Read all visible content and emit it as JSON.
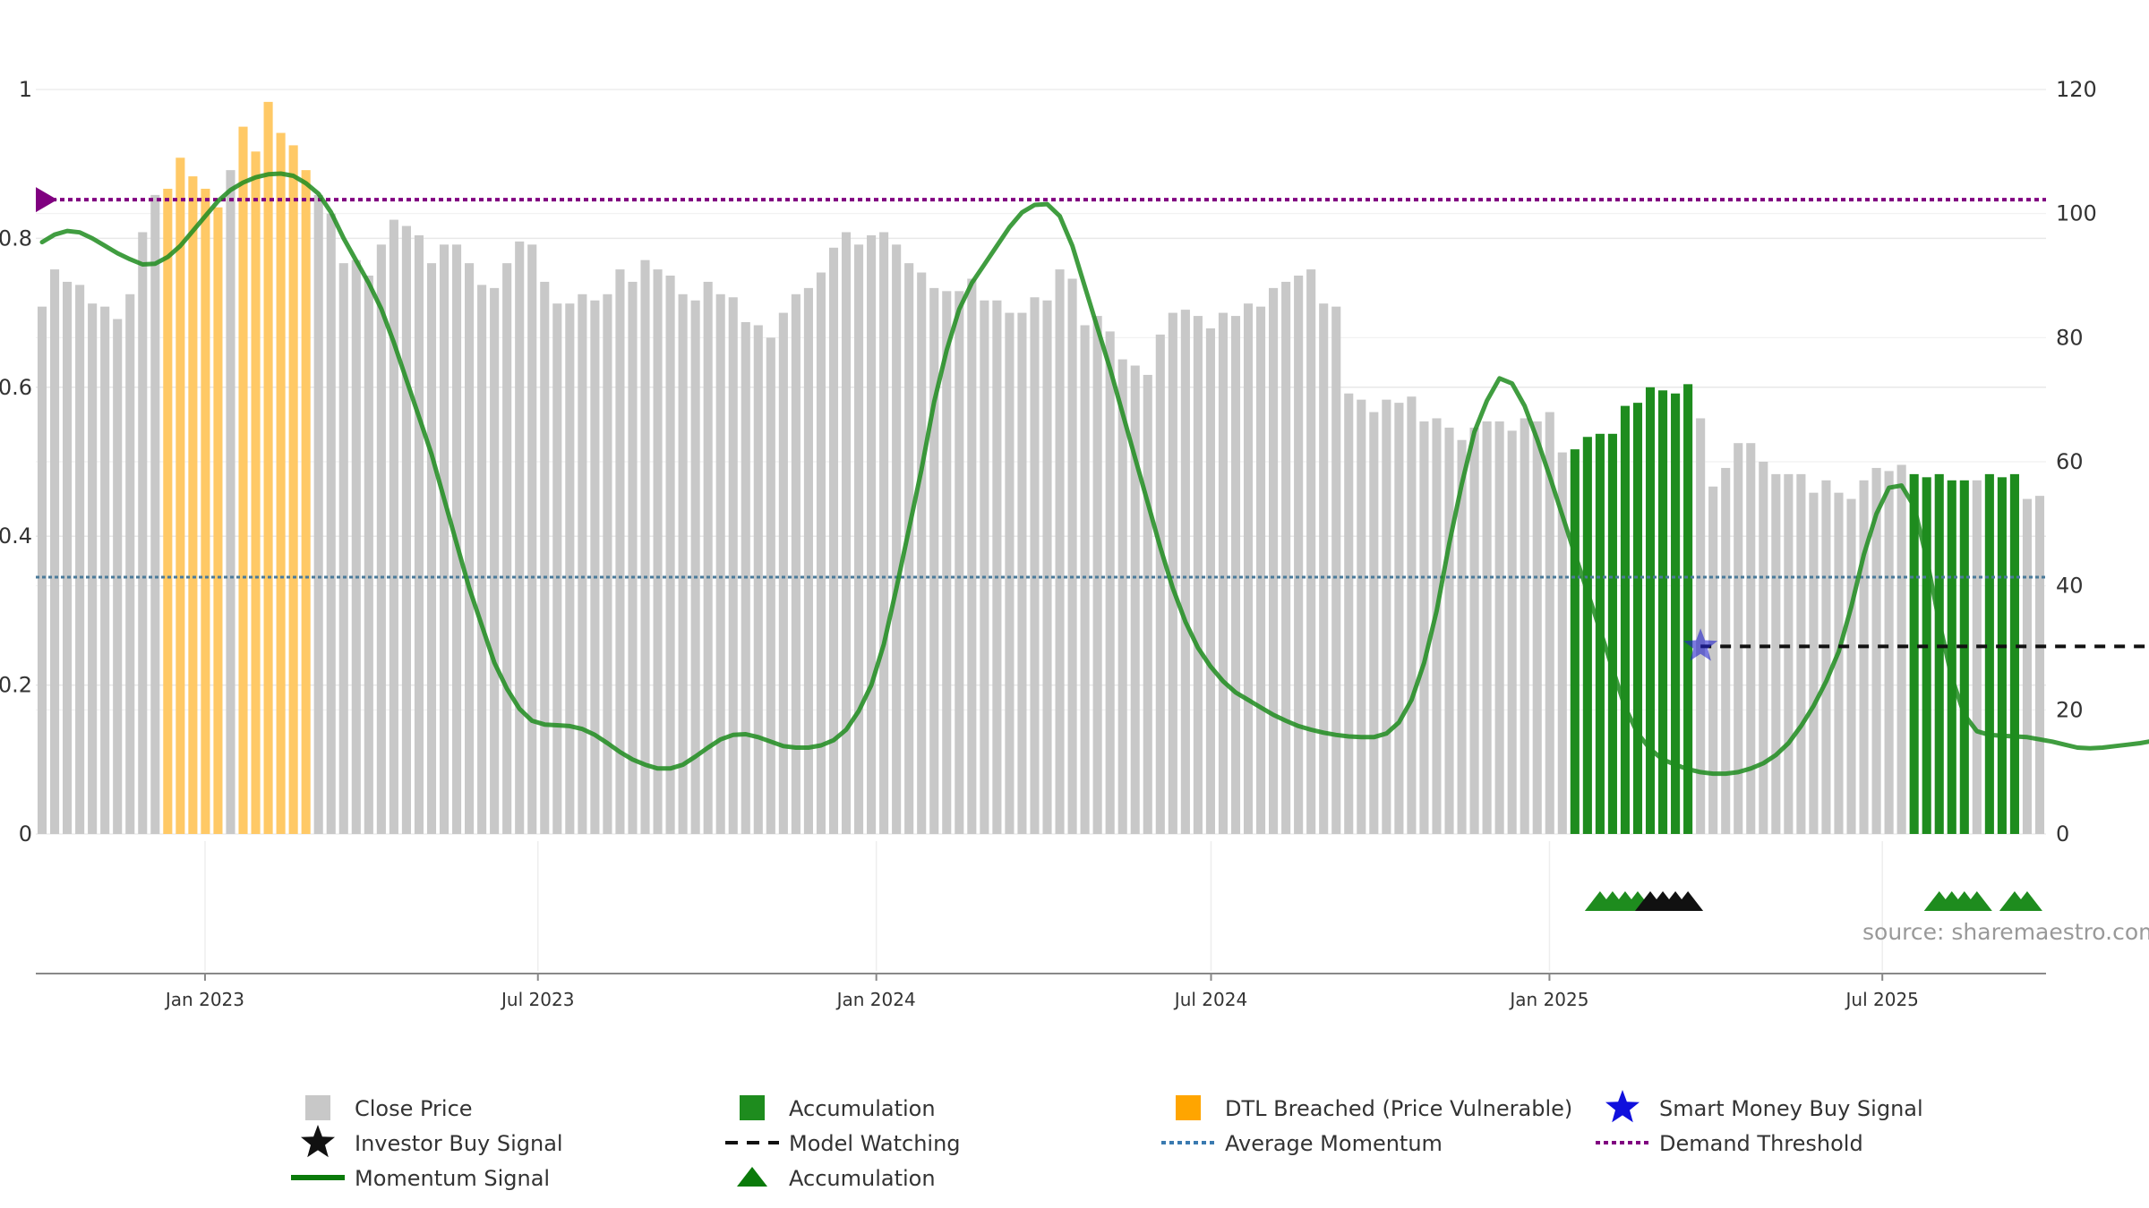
{
  "source": "source: sharemaestro.com",
  "colors": {
    "price": "#c8c8c8",
    "accumulation": "#1e8c1e",
    "dtl": "#ffc966",
    "momentum": "#1e8c1e",
    "demand": "#800080",
    "avg": "#4a7a9a",
    "smart": "#2222cc",
    "investor": "#111111",
    "grid": "#e8e8e8"
  },
  "chart_data": {
    "type": "bar",
    "x_axis": {
      "start": "2022-10-01",
      "end": "2025-09-28",
      "ticks": [
        {
          "date": "2023-01-01",
          "label": "Jan 2023"
        },
        {
          "date": "2023-07-01",
          "label": "Jul 2023"
        },
        {
          "date": "2024-01-01",
          "label": "Jan 2024"
        },
        {
          "date": "2024-07-01",
          "label": "Jul 2024"
        },
        {
          "date": "2025-01-01",
          "label": "Jan 2025"
        },
        {
          "date": "2025-07-01",
          "label": "Jul 2025"
        }
      ]
    },
    "y_left": {
      "range": [
        0,
        1
      ],
      "ticks": [
        {
          "v": 0,
          "label": "0"
        },
        {
          "v": 0.2,
          "label": "0.2"
        },
        {
          "v": 0.4,
          "label": "0.4"
        },
        {
          "v": 0.6,
          "label": "0.6"
        },
        {
          "v": 0.8,
          "label": "0.8"
        },
        {
          "v": 1,
          "label": "1"
        }
      ]
    },
    "y_right": {
      "range": [
        0,
        120
      ],
      "ticks": [
        {
          "v": 0,
          "label": "0"
        },
        {
          "v": 20,
          "label": "20"
        },
        {
          "v": 40,
          "label": "40"
        },
        {
          "v": 60,
          "label": "60"
        },
        {
          "v": 80,
          "label": "80"
        },
        {
          "v": 100,
          "label": "100"
        },
        {
          "v": 120,
          "label": "120"
        }
      ]
    },
    "close_price": [
      85,
      91,
      89,
      88.5,
      85.5,
      85,
      83,
      87,
      97,
      103,
      104,
      109,
      106,
      104,
      101,
      107,
      114,
      110,
      118,
      113,
      111,
      107,
      103,
      100,
      92,
      92.5,
      90,
      95,
      99,
      98,
      96.5,
      92,
      95,
      95,
      92,
      88.5,
      88,
      92,
      95.5,
      95,
      89,
      85.5,
      85.5,
      87,
      86,
      87,
      91,
      89,
      92.5,
      91,
      90,
      87,
      86,
      89,
      87,
      86.5,
      82.5,
      82,
      80,
      84,
      87,
      88,
      90.5,
      94.5,
      97,
      95,
      96.5,
      97,
      95,
      92,
      90.5,
      88,
      87.5,
      87.5,
      89.5,
      86,
      86,
      84,
      84,
      86.5,
      86,
      91,
      89.5,
      82,
      83.5,
      81,
      76.5,
      75.5,
      74,
      80.5,
      84,
      84.5,
      83.5,
      81.5,
      84,
      83.5,
      85.5,
      85,
      88,
      89,
      90,
      91,
      85.5,
      85,
      71,
      70,
      68,
      70,
      69.5,
      70.5,
      66.5,
      67,
      65.5,
      63.5,
      65.5,
      66.5,
      66.5,
      65,
      67,
      66.5,
      68,
      61.5,
      62,
      64,
      64.5,
      64.5,
      69,
      69.5,
      72,
      71.5,
      71,
      72.5,
      67,
      56,
      59,
      63,
      63,
      60,
      58,
      58,
      58,
      55,
      57,
      55,
      54,
      57,
      59,
      58.5,
      59.5,
      58,
      57.5,
      58,
      57,
      57,
      57,
      58,
      57.5,
      58,
      54,
      54.5
    ],
    "dtl_breached_bars": [
      10,
      11,
      12,
      13,
      14,
      16,
      17,
      18,
      19,
      20,
      21
    ],
    "accumulation_bars": [
      122,
      123,
      124,
      125,
      126,
      127,
      128,
      129,
      130,
      131,
      149,
      150,
      151,
      152,
      153,
      155,
      156,
      157
    ],
    "momentum_signal": [
      [
        0,
        0.795
      ],
      [
        1,
        0.805
      ],
      [
        2,
        0.81
      ],
      [
        3,
        0.808
      ],
      [
        4,
        0.8
      ],
      [
        5,
        0.79
      ],
      [
        6,
        0.78
      ],
      [
        7,
        0.772
      ],
      [
        8,
        0.765
      ],
      [
        9,
        0.766
      ],
      [
        10,
        0.775
      ],
      [
        11,
        0.79
      ],
      [
        12,
        0.81
      ],
      [
        13,
        0.83
      ],
      [
        14,
        0.85
      ],
      [
        15,
        0.865
      ],
      [
        16,
        0.875
      ],
      [
        17,
        0.882
      ],
      [
        18,
        0.886
      ],
      [
        19,
        0.887
      ],
      [
        20,
        0.884
      ],
      [
        21,
        0.874
      ],
      [
        22,
        0.86
      ],
      [
        23,
        0.835
      ],
      [
        24,
        0.8
      ],
      [
        25,
        0.77
      ],
      [
        26,
        0.74
      ],
      [
        27,
        0.705
      ],
      [
        28,
        0.66
      ],
      [
        29,
        0.61
      ],
      [
        30,
        0.56
      ],
      [
        31,
        0.51
      ],
      [
        32,
        0.45
      ],
      [
        33,
        0.39
      ],
      [
        34,
        0.33
      ],
      [
        35,
        0.28
      ],
      [
        36,
        0.23
      ],
      [
        37,
        0.195
      ],
      [
        38,
        0.168
      ],
      [
        39,
        0.152
      ],
      [
        40,
        0.147
      ],
      [
        41,
        0.146
      ],
      [
        42,
        0.145
      ],
      [
        43,
        0.141
      ],
      [
        44,
        0.133
      ],
      [
        45,
        0.122
      ],
      [
        46,
        0.11
      ],
      [
        47,
        0.1
      ],
      [
        48,
        0.093
      ],
      [
        49,
        0.088
      ],
      [
        50,
        0.088
      ],
      [
        51,
        0.093
      ],
      [
        52,
        0.104
      ],
      [
        53,
        0.116
      ],
      [
        54,
        0.127
      ],
      [
        55,
        0.133
      ],
      [
        56,
        0.134
      ],
      [
        57,
        0.13
      ],
      [
        58,
        0.124
      ],
      [
        59,
        0.118
      ],
      [
        60,
        0.116
      ],
      [
        61,
        0.116
      ],
      [
        62,
        0.119
      ],
      [
        63,
        0.126
      ],
      [
        64,
        0.14
      ],
      [
        65,
        0.165
      ],
      [
        66,
        0.2
      ],
      [
        67,
        0.255
      ],
      [
        68,
        0.33
      ],
      [
        69,
        0.41
      ],
      [
        70,
        0.49
      ],
      [
        71,
        0.58
      ],
      [
        72,
        0.65
      ],
      [
        73,
        0.705
      ],
      [
        74,
        0.74
      ],
      [
        75,
        0.765
      ],
      [
        76,
        0.79
      ],
      [
        77,
        0.815
      ],
      [
        78,
        0.835
      ],
      [
        79,
        0.845
      ],
      [
        80,
        0.846
      ],
      [
        81,
        0.83
      ],
      [
        82,
        0.79
      ],
      [
        83,
        0.735
      ],
      [
        84,
        0.68
      ],
      [
        85,
        0.625
      ],
      [
        86,
        0.565
      ],
      [
        87,
        0.505
      ],
      [
        88,
        0.445
      ],
      [
        89,
        0.385
      ],
      [
        90,
        0.33
      ],
      [
        91,
        0.285
      ],
      [
        92,
        0.25
      ],
      [
        93,
        0.225
      ],
      [
        94,
        0.205
      ],
      [
        95,
        0.19
      ],
      [
        96,
        0.18
      ],
      [
        97,
        0.17
      ],
      [
        98,
        0.16
      ],
      [
        99,
        0.152
      ],
      [
        100,
        0.145
      ],
      [
        101,
        0.14
      ],
      [
        102,
        0.136
      ],
      [
        103,
        0.133
      ],
      [
        104,
        0.131
      ],
      [
        105,
        0.13
      ],
      [
        106,
        0.13
      ],
      [
        107,
        0.135
      ],
      [
        108,
        0.15
      ],
      [
        109,
        0.18
      ],
      [
        110,
        0.23
      ],
      [
        111,
        0.3
      ],
      [
        112,
        0.39
      ],
      [
        113,
        0.47
      ],
      [
        114,
        0.54
      ],
      [
        115,
        0.582
      ],
      [
        116,
        0.612
      ],
      [
        117,
        0.605
      ],
      [
        118,
        0.575
      ],
      [
        119,
        0.53
      ],
      [
        120,
        0.48
      ],
      [
        121,
        0.428
      ],
      [
        122,
        0.376
      ],
      [
        123,
        0.325
      ],
      [
        124,
        0.274
      ],
      [
        125,
        0.222
      ],
      [
        126,
        0.17
      ],
      [
        127,
        0.135
      ],
      [
        128,
        0.114
      ],
      [
        129,
        0.1
      ],
      [
        130,
        0.093
      ],
      [
        131,
        0.087
      ],
      [
        132,
        0.083
      ],
      [
        133,
        0.081
      ],
      [
        134,
        0.081
      ],
      [
        135,
        0.083
      ],
      [
        136,
        0.088
      ],
      [
        137,
        0.095
      ],
      [
        138,
        0.106
      ],
      [
        139,
        0.122
      ],
      [
        140,
        0.145
      ],
      [
        141,
        0.172
      ],
      [
        142,
        0.205
      ],
      [
        143,
        0.245
      ],
      [
        144,
        0.305
      ],
      [
        145,
        0.375
      ],
      [
        146,
        0.43
      ],
      [
        147,
        0.465
      ],
      [
        148,
        0.468
      ],
      [
        149,
        0.44
      ],
      [
        150,
        0.37
      ],
      [
        151,
        0.285
      ],
      [
        152,
        0.21
      ],
      [
        153,
        0.16
      ],
      [
        154,
        0.138
      ],
      [
        155,
        0.133
      ],
      [
        156,
        0.132
      ],
      [
        157,
        0.131
      ],
      [
        158,
        0.13
      ],
      [
        159,
        0.127
      ],
      [
        160,
        0.124
      ],
      [
        161,
        0.12
      ],
      [
        162,
        0.116
      ],
      [
        163,
        0.115
      ],
      [
        164,
        0.116
      ],
      [
        165,
        0.118
      ],
      [
        166,
        0.12
      ],
      [
        167,
        0.122
      ],
      [
        168,
        0.125
      ],
      [
        169,
        0.127
      ],
      [
        170,
        0.118
      ],
      [
        171,
        0.114
      ],
      [
        172,
        0.135
      ],
      [
        173,
        0.15
      ],
      [
        174,
        0.14
      ]
    ],
    "demand_threshold": 0.852,
    "average_momentum": 0.345,
    "smart_money_buy_signal": {
      "bar": 132,
      "value": 0.252
    },
    "model_watching": {
      "value": 0.252,
      "from_bar": 132,
      "to_bar": 174
    },
    "markers": [
      {
        "bar": 124,
        "type": "accumulation"
      },
      {
        "bar": 125,
        "type": "accumulation"
      },
      {
        "bar": 126,
        "type": "accumulation"
      },
      {
        "bar": 127,
        "type": "accumulation"
      },
      {
        "bar": 128,
        "type": "investor"
      },
      {
        "bar": 129,
        "type": "investor"
      },
      {
        "bar": 130,
        "type": "investor"
      },
      {
        "bar": 131,
        "type": "investor"
      },
      {
        "bar": 151,
        "type": "accumulation"
      },
      {
        "bar": 152,
        "type": "accumulation"
      },
      {
        "bar": 153,
        "type": "accumulation"
      },
      {
        "bar": 154,
        "type": "accumulation"
      },
      {
        "bar": 157,
        "type": "accumulation"
      },
      {
        "bar": 158,
        "type": "accumulation"
      }
    ],
    "legend": [
      {
        "key": "close_price",
        "label": "Close Price",
        "symbol": "square",
        "color": "#c8c8c8"
      },
      {
        "key": "accumulation_bar",
        "label": "Accumulation",
        "symbol": "square",
        "color": "#1e8c1e"
      },
      {
        "key": "dtl",
        "label": "DTL Breached (Price Vulnerable)",
        "symbol": "square",
        "color": "#ffa500"
      },
      {
        "key": "smart_money",
        "label": "Smart Money Buy Signal",
        "symbol": "star",
        "color": "#1010dd"
      },
      {
        "key": "investor_buy",
        "label": "Investor Buy Signal",
        "symbol": "star",
        "color": "#111111"
      },
      {
        "key": "model_watching",
        "label": "Model Watching",
        "symbol": "dash",
        "color": "#111111"
      },
      {
        "key": "avg_momentum",
        "label": "Average Momentum",
        "symbol": "dot",
        "color": "#3a7ab0"
      },
      {
        "key": "demand_threshold",
        "label": "Demand Threshold",
        "symbol": "dot",
        "color": "#800080"
      },
      {
        "key": "momentum_signal",
        "label": "Momentum Signal",
        "symbol": "line",
        "color": "#0a7a0a"
      },
      {
        "key": "accumulation_marker",
        "label": "Accumulation",
        "symbol": "triangle",
        "color": "#0a7a0a"
      }
    ]
  }
}
